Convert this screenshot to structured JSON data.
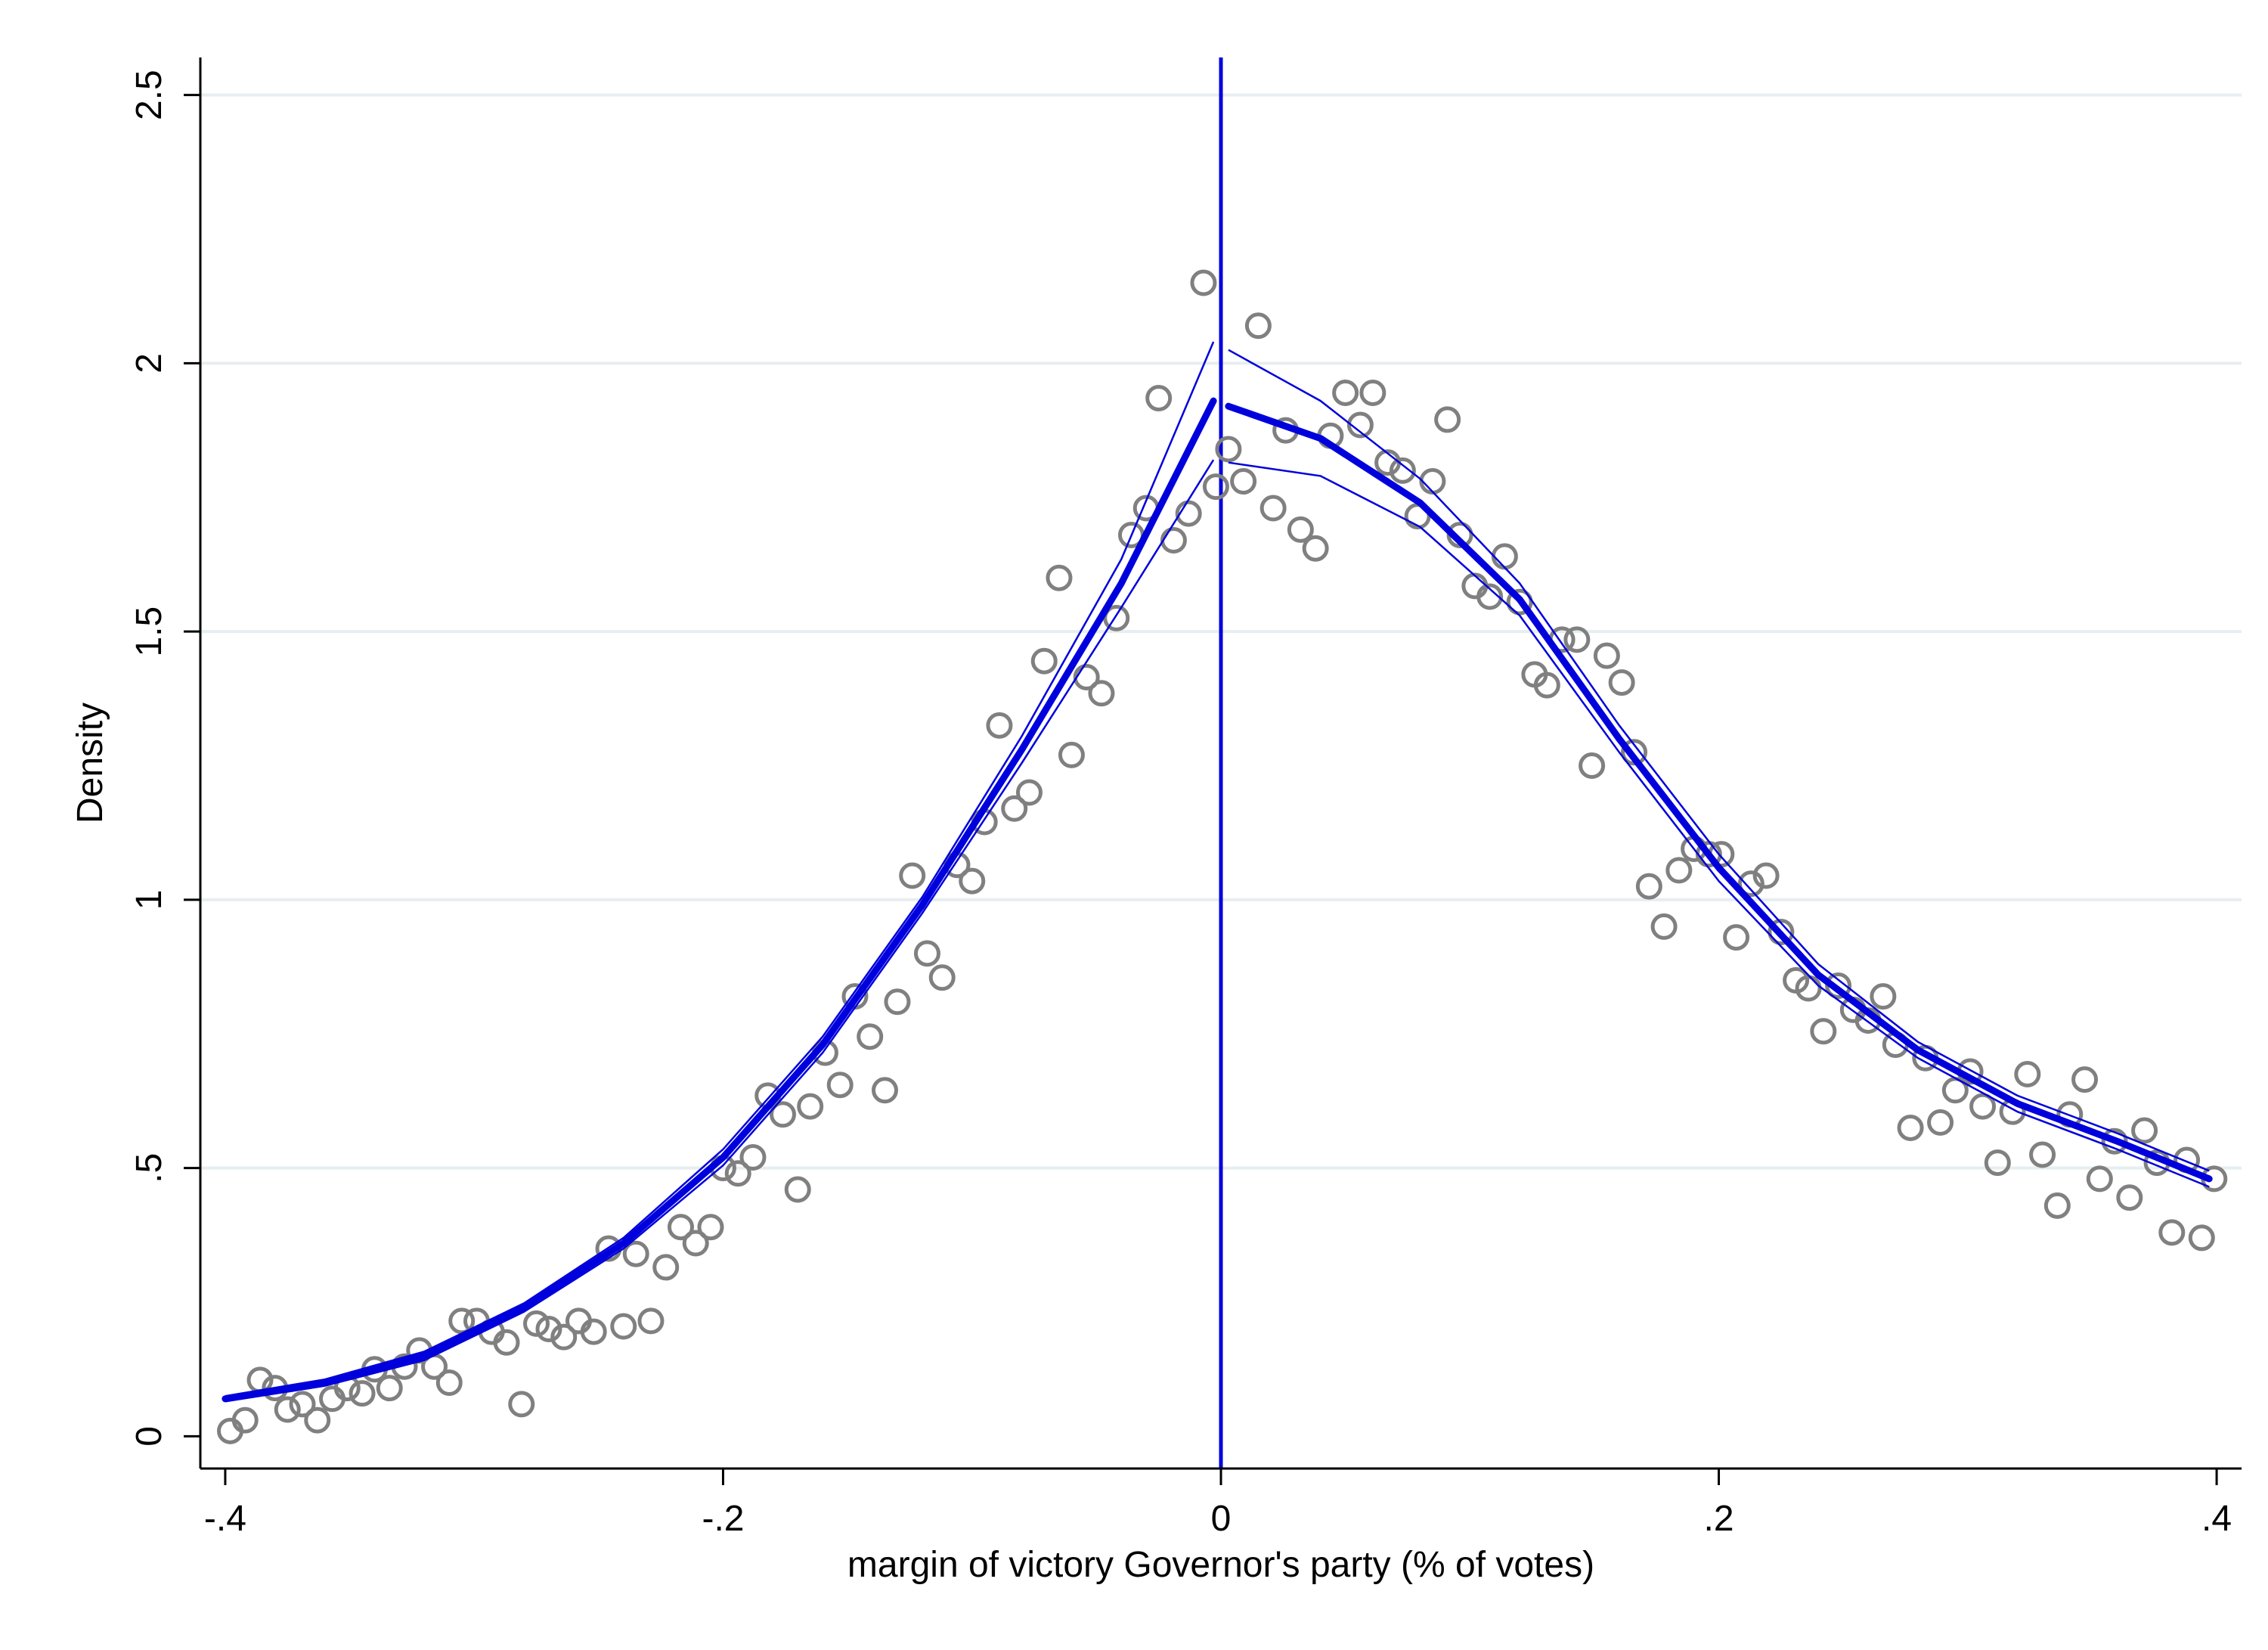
{
  "chart_data": {
    "type": "scatter",
    "title": "",
    "xlabel": "margin of victory Governor's party (% of votes)",
    "ylabel": "Density",
    "xlim": [
      -0.41,
      0.41
    ],
    "ylim": [
      -0.06,
      2.57
    ],
    "x_ticks": [
      {
        "value": -0.4,
        "label": "-.4"
      },
      {
        "value": -0.2,
        "label": "-.2"
      },
      {
        "value": 0,
        "label": "0"
      },
      {
        "value": 0.2,
        "label": ".2"
      },
      {
        "value": 0.4,
        "label": ".4"
      }
    ],
    "y_ticks": [
      {
        "value": 0,
        "label": "0"
      },
      {
        "value": 0.5,
        "label": ".5"
      },
      {
        "value": 1,
        "label": "1"
      },
      {
        "value": 1.5,
        "label": "1.5"
      },
      {
        "value": 2,
        "label": "2"
      },
      {
        "value": 2.5,
        "label": "2.5"
      }
    ],
    "grid": "horizontal",
    "cutoff": 0,
    "colors": {
      "points": "#808080",
      "fit": "#0000dd",
      "cutoff": "#0000dd",
      "grid": "#e6eef0",
      "axis": "#000000"
    },
    "points": [
      [
        -0.398,
        0.01
      ],
      [
        -0.392,
        0.03
      ],
      [
        -0.386,
        0.105
      ],
      [
        -0.38,
        0.09
      ],
      [
        -0.375,
        0.05
      ],
      [
        -0.369,
        0.06
      ],
      [
        -0.363,
        0.03
      ],
      [
        -0.357,
        0.07
      ],
      [
        -0.351,
        0.09
      ],
      [
        -0.345,
        0.08
      ],
      [
        -0.34,
        0.125
      ],
      [
        -0.334,
        0.09
      ],
      [
        -0.328,
        0.13
      ],
      [
        -0.322,
        0.16
      ],
      [
        -0.316,
        0.13
      ],
      [
        -0.31,
        0.1
      ],
      [
        -0.305,
        0.215
      ],
      [
        -0.299,
        0.215
      ],
      [
        -0.293,
        0.195
      ],
      [
        -0.287,
        0.175
      ],
      [
        -0.281,
        0.06
      ],
      [
        -0.275,
        0.21
      ],
      [
        -0.27,
        0.2
      ],
      [
        -0.264,
        0.185
      ],
      [
        -0.258,
        0.215
      ],
      [
        -0.252,
        0.195
      ],
      [
        -0.246,
        0.35
      ],
      [
        -0.24,
        0.205
      ],
      [
        -0.235,
        0.34
      ],
      [
        -0.229,
        0.215
      ],
      [
        -0.223,
        0.315
      ],
      [
        -0.217,
        0.39
      ],
      [
        -0.211,
        0.36
      ],
      [
        -0.205,
        0.39
      ],
      [
        -0.2,
        0.5
      ],
      [
        -0.194,
        0.49
      ],
      [
        -0.188,
        0.52
      ],
      [
        -0.182,
        0.635
      ],
      [
        -0.176,
        0.6
      ],
      [
        -0.17,
        0.46
      ],
      [
        -0.165,
        0.615
      ],
      [
        -0.159,
        0.715
      ],
      [
        -0.153,
        0.655
      ],
      [
        -0.147,
        0.82
      ],
      [
        -0.141,
        0.745
      ],
      [
        -0.135,
        0.645
      ],
      [
        -0.13,
        0.81
      ],
      [
        -0.124,
        1.045
      ],
      [
        -0.118,
        0.9
      ],
      [
        -0.112,
        0.855
      ],
      [
        -0.106,
        1.065
      ],
      [
        -0.1,
        1.035
      ],
      [
        -0.095,
        1.145
      ],
      [
        -0.089,
        1.325
      ],
      [
        -0.083,
        1.17
      ],
      [
        -0.077,
        1.2
      ],
      [
        -0.071,
        1.445
      ],
      [
        -0.065,
        1.6
      ],
      [
        -0.06,
        1.27
      ],
      [
        -0.054,
        1.415
      ],
      [
        -0.048,
        1.385
      ],
      [
        -0.042,
        1.525
      ],
      [
        -0.036,
        1.68
      ],
      [
        -0.03,
        1.73
      ],
      [
        -0.025,
        1.935
      ],
      [
        -0.019,
        1.67
      ],
      [
        -0.013,
        1.72
      ],
      [
        -0.007,
        2.15
      ],
      [
        -0.002,
        1.77
      ],
      [
        0.003,
        1.84
      ],
      [
        0.009,
        1.78
      ],
      [
        0.015,
        2.07
      ],
      [
        0.021,
        1.73
      ],
      [
        0.026,
        1.875
      ],
      [
        0.032,
        1.69
      ],
      [
        0.038,
        1.655
      ],
      [
        0.044,
        1.865
      ],
      [
        0.05,
        1.945
      ],
      [
        0.056,
        1.885
      ],
      [
        0.061,
        1.945
      ],
      [
        0.067,
        1.815
      ],
      [
        0.073,
        1.8
      ],
      [
        0.079,
        1.715
      ],
      [
        0.085,
        1.78
      ],
      [
        0.091,
        1.895
      ],
      [
        0.096,
        1.68
      ],
      [
        0.102,
        1.585
      ],
      [
        0.108,
        1.565
      ],
      [
        0.114,
        1.64
      ],
      [
        0.12,
        1.555
      ],
      [
        0.126,
        1.42
      ],
      [
        0.131,
        1.4
      ],
      [
        0.137,
        1.485
      ],
      [
        0.143,
        1.485
      ],
      [
        0.149,
        1.25
      ],
      [
        0.155,
        1.455
      ],
      [
        0.161,
        1.405
      ],
      [
        0.166,
        1.275
      ],
      [
        0.172,
        1.025
      ],
      [
        0.178,
        0.95
      ],
      [
        0.184,
        1.055
      ],
      [
        0.19,
        1.095
      ],
      [
        0.196,
        1.085
      ],
      [
        0.201,
        1.085
      ],
      [
        0.207,
        0.93
      ],
      [
        0.213,
        1.03
      ],
      [
        0.219,
        1.045
      ],
      [
        0.225,
        0.94
      ],
      [
        0.231,
        0.85
      ],
      [
        0.236,
        0.835
      ],
      [
        0.242,
        0.755
      ],
      [
        0.248,
        0.84
      ],
      [
        0.254,
        0.795
      ],
      [
        0.26,
        0.775
      ],
      [
        0.266,
        0.82
      ],
      [
        0.271,
        0.73
      ],
      [
        0.277,
        0.575
      ],
      [
        0.283,
        0.705
      ],
      [
        0.289,
        0.585
      ],
      [
        0.295,
        0.645
      ],
      [
        0.301,
        0.68
      ],
      [
        0.306,
        0.615
      ],
      [
        0.312,
        0.51
      ],
      [
        0.318,
        0.605
      ],
      [
        0.324,
        0.675
      ],
      [
        0.33,
        0.525
      ],
      [
        0.336,
        0.43
      ],
      [
        0.341,
        0.6
      ],
      [
        0.347,
        0.665
      ],
      [
        0.353,
        0.48
      ],
      [
        0.359,
        0.55
      ],
      [
        0.365,
        0.445
      ],
      [
        0.371,
        0.57
      ],
      [
        0.376,
        0.51
      ],
      [
        0.382,
        0.38
      ],
      [
        0.388,
        0.515
      ],
      [
        0.394,
        0.37
      ],
      [
        0.399,
        0.48
      ]
    ],
    "fit_left": {
      "x": [
        -0.4,
        -0.36,
        -0.32,
        -0.28,
        -0.24,
        -0.2,
        -0.16,
        -0.12,
        -0.08,
        -0.04,
        -0.003
      ],
      "y": [
        0.07,
        0.1,
        0.15,
        0.24,
        0.36,
        0.52,
        0.73,
        0.99,
        1.28,
        1.59,
        1.93
      ],
      "lo": [
        0.065,
        0.094,
        0.142,
        0.232,
        0.35,
        0.505,
        0.715,
        0.975,
        1.255,
        1.545,
        1.82
      ],
      "hi": [
        0.075,
        0.106,
        0.158,
        0.248,
        0.37,
        0.535,
        0.745,
        1.005,
        1.305,
        1.635,
        2.04
      ]
    },
    "fit_right": {
      "x": [
        0.003,
        0.04,
        0.08,
        0.12,
        0.16,
        0.2,
        0.24,
        0.28,
        0.32,
        0.36,
        0.397
      ],
      "y": [
        1.92,
        1.86,
        1.74,
        1.56,
        1.3,
        1.06,
        0.86,
        0.72,
        0.62,
        0.55,
        0.48
      ],
      "lo": [
        1.815,
        1.79,
        1.695,
        1.53,
        1.275,
        1.035,
        0.84,
        0.705,
        0.605,
        0.535,
        0.465
      ],
      "hi": [
        2.025,
        1.93,
        1.785,
        1.59,
        1.325,
        1.085,
        0.88,
        0.735,
        0.635,
        0.565,
        0.495
      ]
    }
  }
}
